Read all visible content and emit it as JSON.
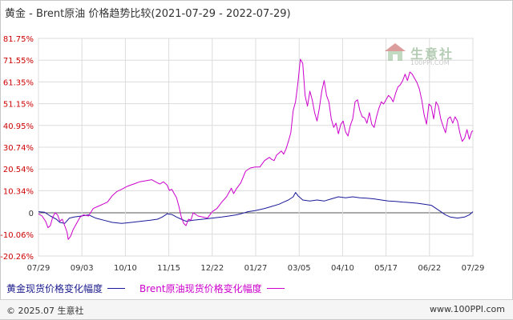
{
  "header": {
    "title": "黄金 - Brent原油 价格趋势比较",
    "date_range": "(2021-07-29 - 2022-07-29)"
  },
  "chart_data": {
    "type": "line",
    "x_tick_labels": [
      "07/29",
      "09/03",
      "10/10",
      "11/15",
      "12/22",
      "01/27",
      "03/05",
      "04/10",
      "05/17",
      "06/22",
      "07/29"
    ],
    "y_tick_labels": [
      "81.75%",
      "71.55%",
      "61.35%",
      "51.15%",
      "40.95%",
      "30.74%",
      "20.54%",
      "10.34%",
      "0",
      "-10.06%",
      "-20.26%"
    ],
    "y_ticks": [
      81.75,
      71.55,
      61.35,
      51.15,
      40.95,
      30.74,
      20.54,
      10.34,
      0,
      -10.06,
      -20.26
    ],
    "ylim": [
      -20.26,
      81.75
    ],
    "xlim_days": [
      0,
      365
    ],
    "grid": true,
    "legend_position": "bottom",
    "series": [
      {
        "name": "黄金现货价格变化幅度",
        "color": "#1a1a9a",
        "points": [
          [
            0,
            0.5
          ],
          [
            5,
            0.3
          ],
          [
            10,
            -1.5
          ],
          [
            15,
            -3.0
          ],
          [
            18,
            -4.5
          ],
          [
            22,
            -5.0
          ],
          [
            26,
            -2.5
          ],
          [
            30,
            -2.0
          ],
          [
            36,
            -1.5
          ],
          [
            42,
            -1.0
          ],
          [
            48,
            -2.5
          ],
          [
            55,
            -3.5
          ],
          [
            62,
            -4.5
          ],
          [
            70,
            -5.0
          ],
          [
            78,
            -4.5
          ],
          [
            86,
            -4.0
          ],
          [
            94,
            -3.5
          ],
          [
            100,
            -3.0
          ],
          [
            104,
            -2.0
          ],
          [
            108,
            -0.5
          ],
          [
            112,
            -0.8
          ],
          [
            116,
            -2.0
          ],
          [
            120,
            -3.0
          ],
          [
            124,
            -4.0
          ],
          [
            130,
            -3.5
          ],
          [
            138,
            -3.0
          ],
          [
            146,
            -2.5
          ],
          [
            154,
            -2.0
          ],
          [
            160,
            -1.5
          ],
          [
            166,
            -1.0
          ],
          [
            170,
            -0.5
          ],
          [
            176,
            0.5
          ],
          [
            182,
            1.0
          ],
          [
            186,
            1.5
          ],
          [
            190,
            2.0
          ],
          [
            196,
            3.0
          ],
          [
            202,
            4.0
          ],
          [
            206,
            5.0
          ],
          [
            210,
            6.0
          ],
          [
            214,
            7.5
          ],
          [
            216,
            9.5
          ],
          [
            218,
            8.0
          ],
          [
            222,
            6.0
          ],
          [
            228,
            5.5
          ],
          [
            234,
            6.0
          ],
          [
            240,
            5.5
          ],
          [
            246,
            6.5
          ],
          [
            252,
            7.5
          ],
          [
            258,
            7.0
          ],
          [
            264,
            7.5
          ],
          [
            270,
            7.0
          ],
          [
            276,
            6.8
          ],
          [
            282,
            6.5
          ],
          [
            288,
            6.0
          ],
          [
            294,
            5.5
          ],
          [
            300,
            5.3
          ],
          [
            306,
            5.0
          ],
          [
            312,
            4.8
          ],
          [
            318,
            4.5
          ],
          [
            324,
            4.0
          ],
          [
            330,
            3.5
          ],
          [
            334,
            2.0
          ],
          [
            338,
            0.5
          ],
          [
            342,
            -1.0
          ],
          [
            346,
            -2.0
          ],
          [
            352,
            -2.5
          ],
          [
            358,
            -2.0
          ],
          [
            362,
            -1.0
          ],
          [
            365,
            0.5
          ]
        ]
      },
      {
        "name": "Brent原油现货价格变化幅度",
        "color": "#cc00cc",
        "points": [
          [
            0,
            -0.5
          ],
          [
            3,
            -1.5
          ],
          [
            6,
            -4.0
          ],
          [
            8,
            -7.0
          ],
          [
            10,
            -6.0
          ],
          [
            12,
            -2.0
          ],
          [
            14,
            0.0
          ],
          [
            16,
            -1.0
          ],
          [
            18,
            -4.0
          ],
          [
            20,
            -3.0
          ],
          [
            22,
            -6.0
          ],
          [
            24,
            -9.0
          ],
          [
            25,
            -12.5
          ],
          [
            27,
            -11.0
          ],
          [
            29,
            -8.0
          ],
          [
            31,
            -6.0
          ],
          [
            33,
            -4.0
          ],
          [
            35,
            -2.0
          ],
          [
            38,
            -1.0
          ],
          [
            42,
            -1.5
          ],
          [
            46,
            2.0
          ],
          [
            50,
            3.0
          ],
          [
            54,
            4.0
          ],
          [
            58,
            5.0
          ],
          [
            62,
            8.0
          ],
          [
            66,
            10.0
          ],
          [
            70,
            11.0
          ],
          [
            75,
            12.5
          ],
          [
            80,
            13.5
          ],
          [
            85,
            14.5
          ],
          [
            90,
            15.0
          ],
          [
            95,
            15.5
          ],
          [
            100,
            14.0
          ],
          [
            102,
            13.5
          ],
          [
            105,
            14.5
          ],
          [
            108,
            13.0
          ],
          [
            110,
            10.5
          ],
          [
            112,
            11.0
          ],
          [
            114,
            9.0
          ],
          [
            116,
            7.0
          ],
          [
            118,
            3.0
          ],
          [
            120,
            -2.0
          ],
          [
            122,
            -5.0
          ],
          [
            124,
            -6.0
          ],
          [
            126,
            -3.0
          ],
          [
            128,
            -3.5
          ],
          [
            130,
            0.0
          ],
          [
            134,
            -1.5
          ],
          [
            138,
            -2.0
          ],
          [
            142,
            -2.5
          ],
          [
            146,
            0.5
          ],
          [
            150,
            2.0
          ],
          [
            154,
            5.0
          ],
          [
            158,
            7.5
          ],
          [
            162,
            11.5
          ],
          [
            164,
            9.0
          ],
          [
            166,
            11.0
          ],
          [
            170,
            14.0
          ],
          [
            174,
            19.5
          ],
          [
            178,
            21.0
          ],
          [
            182,
            21.5
          ],
          [
            186,
            21.5
          ],
          [
            190,
            24.5
          ],
          [
            194,
            26.0
          ],
          [
            196,
            25.0
          ],
          [
            198,
            24.5
          ],
          [
            200,
            27.0
          ],
          [
            204,
            29.0
          ],
          [
            206,
            27.5
          ],
          [
            208,
            30.0
          ],
          [
            210,
            33.5
          ],
          [
            212,
            37.5
          ],
          [
            214,
            48.0
          ],
          [
            216,
            52.0
          ],
          [
            218,
            61.0
          ],
          [
            220,
            72.0
          ],
          [
            222,
            70.0
          ],
          [
            224,
            55.0
          ],
          [
            226,
            50.0
          ],
          [
            228,
            57.0
          ],
          [
            230,
            53.0
          ],
          [
            232,
            47.0
          ],
          [
            234,
            43.0
          ],
          [
            236,
            49.0
          ],
          [
            238,
            57.0
          ],
          [
            240,
            62.0
          ],
          [
            242,
            55.0
          ],
          [
            244,
            52.0
          ],
          [
            246,
            44.0
          ],
          [
            248,
            40.0
          ],
          [
            250,
            42.0
          ],
          [
            252,
            37.0
          ],
          [
            254,
            41.5
          ],
          [
            256,
            43.0
          ],
          [
            258,
            38.0
          ],
          [
            260,
            36.0
          ],
          [
            262,
            41.0
          ],
          [
            264,
            44.0
          ],
          [
            266,
            52.0
          ],
          [
            268,
            53.0
          ],
          [
            270,
            48.0
          ],
          [
            272,
            45.0
          ],
          [
            274,
            44.5
          ],
          [
            276,
            42.0
          ],
          [
            278,
            47.0
          ],
          [
            280,
            41.5
          ],
          [
            282,
            40.0
          ],
          [
            284,
            45.0
          ],
          [
            286,
            49.0
          ],
          [
            288,
            52.0
          ],
          [
            290,
            51.0
          ],
          [
            292,
            53.0
          ],
          [
            294,
            55.0
          ],
          [
            296,
            54.0
          ],
          [
            298,
            52.0
          ],
          [
            300,
            56.0
          ],
          [
            302,
            59.0
          ],
          [
            304,
            60.0
          ],
          [
            306,
            62.0
          ],
          [
            308,
            65.0
          ],
          [
            310,
            62.0
          ],
          [
            312,
            66.0
          ],
          [
            314,
            65.0
          ],
          [
            316,
            63.0
          ],
          [
            318,
            61.0
          ],
          [
            320,
            58.0
          ],
          [
            322,
            53.0
          ],
          [
            324,
            46.0
          ],
          [
            326,
            41.5
          ],
          [
            328,
            51.0
          ],
          [
            330,
            50.0
          ],
          [
            332,
            44.0
          ],
          [
            334,
            52.0
          ],
          [
            336,
            50.0
          ],
          [
            338,
            44.0
          ],
          [
            340,
            40.5
          ],
          [
            342,
            37.5
          ],
          [
            344,
            44.0
          ],
          [
            346,
            45.0
          ],
          [
            348,
            42.0
          ],
          [
            350,
            45.0
          ],
          [
            352,
            43.0
          ],
          [
            354,
            37.5
          ],
          [
            356,
            33.5
          ],
          [
            358,
            35.0
          ],
          [
            360,
            39.0
          ],
          [
            362,
            34.5
          ],
          [
            364,
            38.0
          ],
          [
            365,
            38.5
          ]
        ]
      }
    ]
  },
  "legend": {
    "gold_label": "黄金现货价格变化幅度",
    "brent_label": "Brent原油现货价格变化幅度"
  },
  "watermark": {
    "name": "生意社",
    "url": "100PPI.COM"
  },
  "footer": {
    "copyright": "© 2025.07 生意社",
    "url": "www.100PPI.com"
  },
  "colors": {
    "gold_series": "#1a1a9a",
    "brent_series": "#cc00cc",
    "y_tick_labels": "#cc0000",
    "grid": "#dcdcdc"
  }
}
